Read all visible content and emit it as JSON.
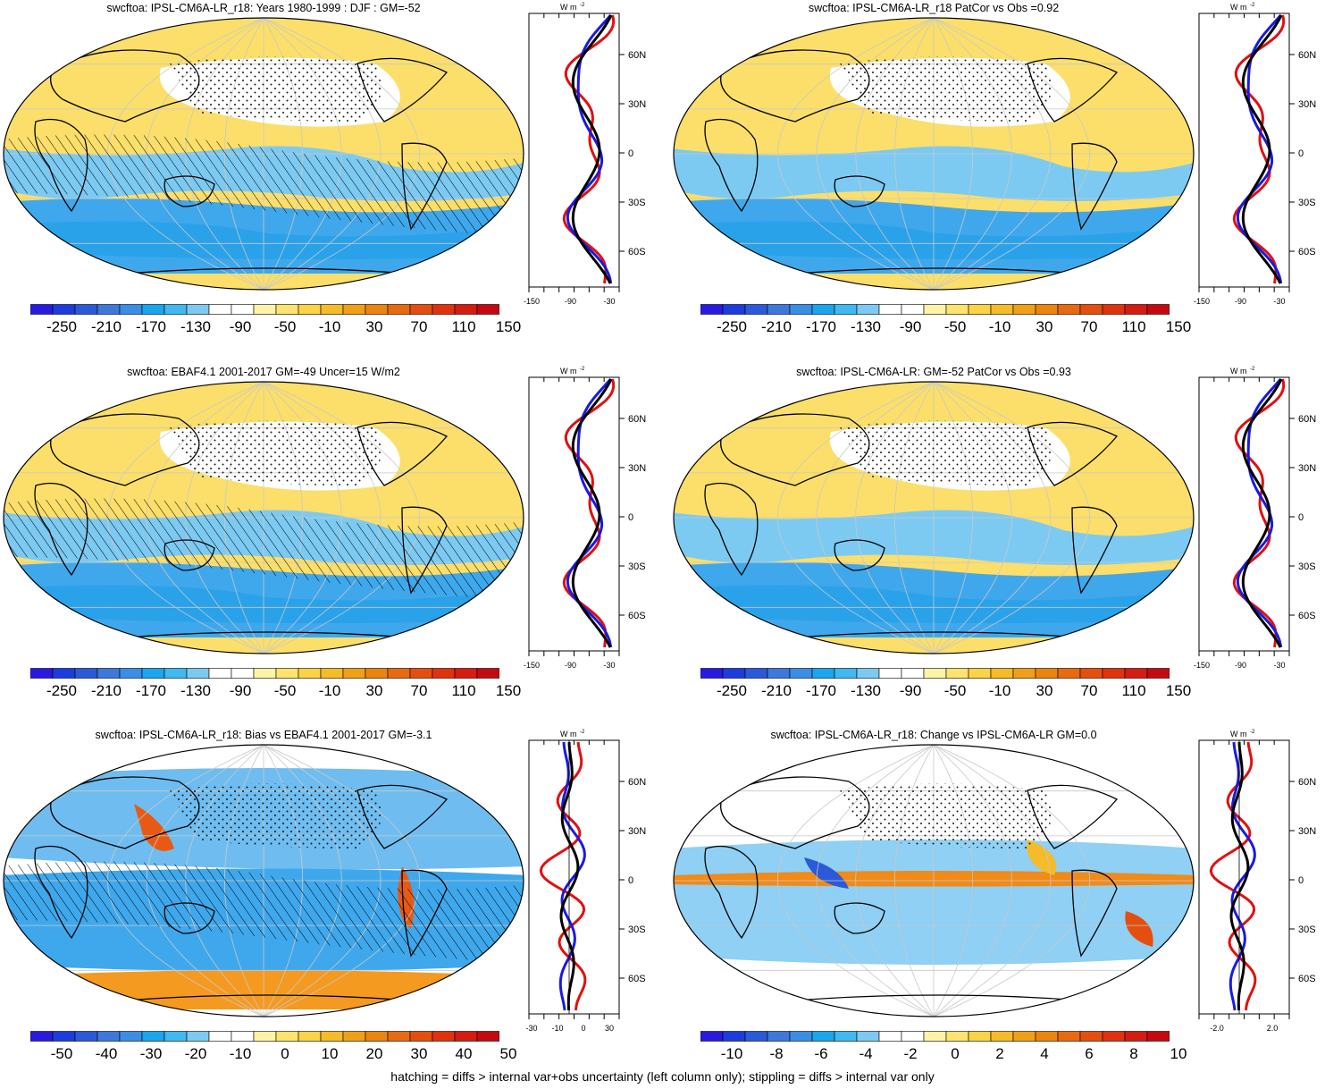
{
  "panels": [
    {
      "id": "p1",
      "title": "swcftoa: IPSL-CM6A-LR_r18: Years 1980-1999 : DJF : GM=-52",
      "colorbar": {
        "labels": [
          "-250",
          "-210",
          "-170",
          "-130",
          "-90",
          "-50",
          "-10",
          "30",
          "70",
          "110",
          "150"
        ],
        "colors": [
          "#2a1ae0",
          "#1c3cdc",
          "#2a5ad8",
          "#3d78dd",
          "#3a8ee6",
          "#1aa5ee",
          "#40b8f0",
          "#7ccaf2",
          "#ffffff",
          "#ffffff",
          "#fff3a8",
          "#ffe36e",
          "#fcd247",
          "#f6bb28",
          "#f0a018",
          "#ec8410",
          "#e86a0e",
          "#e44f0d",
          "#e0330d",
          "#d41c10",
          "#c40a10"
        ]
      },
      "profile": {
        "unit": "W m",
        "unit_exp": "-2",
        "lat_labels": [
          "60N",
          "30N",
          "0",
          "30S",
          "60S"
        ],
        "x_labels": [
          "-150",
          "-90",
          "-30"
        ]
      }
    },
    {
      "id": "p2",
      "title": "swcftoa: IPSL-CM6A-LR_r18 PatCor vs Obs =0.92",
      "colorbar": {
        "labels": [
          "-250",
          "-210",
          "-170",
          "-130",
          "-90",
          "-50",
          "-10",
          "30",
          "70",
          "110",
          "150"
        ],
        "colors": [
          "#2a1ae0",
          "#1c3cdc",
          "#2a5ad8",
          "#3d78dd",
          "#3a8ee6",
          "#1aa5ee",
          "#40b8f0",
          "#7ccaf2",
          "#ffffff",
          "#ffffff",
          "#fff3a8",
          "#ffe36e",
          "#fcd247",
          "#f6bb28",
          "#f0a018",
          "#ec8410",
          "#e86a0e",
          "#e44f0d",
          "#e0330d",
          "#d41c10",
          "#c40a10"
        ]
      },
      "profile": {
        "unit": "W m",
        "unit_exp": "-2",
        "lat_labels": [
          "60N",
          "30N",
          "0",
          "30S",
          "60S"
        ],
        "x_labels": [
          "-150",
          "-90",
          "-30"
        ]
      }
    },
    {
      "id": "p3",
      "title": "swcftoa: EBAF4.1 2001-2017 GM=-49 Uncer=15 W/m2",
      "colorbar": {
        "labels": [
          "-250",
          "-210",
          "-170",
          "-130",
          "-90",
          "-50",
          "-10",
          "30",
          "70",
          "110",
          "150"
        ],
        "colors": [
          "#2a1ae0",
          "#1c3cdc",
          "#2a5ad8",
          "#3d78dd",
          "#3a8ee6",
          "#1aa5ee",
          "#40b8f0",
          "#7ccaf2",
          "#ffffff",
          "#ffffff",
          "#fff3a8",
          "#ffe36e",
          "#fcd247",
          "#f6bb28",
          "#f0a018",
          "#ec8410",
          "#e86a0e",
          "#e44f0d",
          "#e0330d",
          "#d41c10",
          "#c40a10"
        ]
      },
      "profile": {
        "unit": "W m",
        "unit_exp": "-2",
        "lat_labels": [
          "60N",
          "30N",
          "0",
          "30S",
          "60S"
        ],
        "x_labels": [
          "-150",
          "-90",
          "-30"
        ]
      }
    },
    {
      "id": "p4",
      "title": "swcftoa: IPSL-CM6A-LR: GM=-52 PatCor vs Obs =0.93",
      "colorbar": {
        "labels": [
          "-250",
          "-210",
          "-170",
          "-130",
          "-90",
          "-50",
          "-10",
          "30",
          "70",
          "110",
          "150"
        ],
        "colors": [
          "#2a1ae0",
          "#1c3cdc",
          "#2a5ad8",
          "#3d78dd",
          "#3a8ee6",
          "#1aa5ee",
          "#40b8f0",
          "#7ccaf2",
          "#ffffff",
          "#ffffff",
          "#fff3a8",
          "#ffe36e",
          "#fcd247",
          "#f6bb28",
          "#f0a018",
          "#ec8410",
          "#e86a0e",
          "#e44f0d",
          "#e0330d",
          "#d41c10",
          "#c40a10"
        ]
      },
      "profile": {
        "unit": "W m",
        "unit_exp": "-2",
        "lat_labels": [
          "60N",
          "30N",
          "0",
          "30S",
          "60S"
        ],
        "x_labels": [
          "-150",
          "-90",
          "-30"
        ]
      }
    },
    {
      "id": "p5",
      "title": "swcftoa: IPSL-CM6A-LR_r18: Bias vs EBAF4.1 2001-2017 GM=-3.1",
      "colorbar": {
        "labels": [
          "-50",
          "-40",
          "-30",
          "-20",
          "-10",
          "0",
          "10",
          "20",
          "30",
          "40",
          "50"
        ],
        "colors": [
          "#2a1ae0",
          "#1c3cdc",
          "#2a5ad8",
          "#3d78dd",
          "#3a8ee6",
          "#1aa5ee",
          "#40b8f0",
          "#7ccaf2",
          "#ffffff",
          "#ffffff",
          "#fff3a8",
          "#ffe36e",
          "#fcd247",
          "#f6bb28",
          "#f0a018",
          "#ec8410",
          "#e86a0e",
          "#e44f0d",
          "#e0330d",
          "#d41c10",
          "#c40a10"
        ]
      },
      "profile": {
        "unit": "W m",
        "unit_exp": "-2",
        "lat_labels": [
          "60N",
          "30N",
          "0",
          "30S",
          "60S"
        ],
        "x_labels": [
          "-30",
          "-10",
          "0",
          "30"
        ]
      }
    },
    {
      "id": "p6",
      "title": "swcftoa: IPSL-CM6A-LR_r18: Change vs IPSL-CM6A-LR GM=0.0",
      "colorbar": {
        "labels": [
          "-10",
          "-8",
          "-6",
          "-4",
          "-2",
          "0",
          "2",
          "4",
          "6",
          "8",
          "10"
        ],
        "colors": [
          "#2a1ae0",
          "#1c3cdc",
          "#2a5ad8",
          "#3d78dd",
          "#3a8ee6",
          "#1aa5ee",
          "#40b8f0",
          "#7ccaf2",
          "#ffffff",
          "#ffffff",
          "#fff3a8",
          "#ffe36e",
          "#fcd247",
          "#f6bb28",
          "#f0a018",
          "#ec8410",
          "#e86a0e",
          "#e44f0d",
          "#e0330d",
          "#d41c10",
          "#c40a10"
        ]
      },
      "profile": {
        "unit": "W m",
        "unit_exp": "-2",
        "lat_labels": [
          "60N",
          "30N",
          "0",
          "30S",
          "60S"
        ],
        "x_labels": [
          "-2.0",
          "2.0"
        ]
      }
    }
  ],
  "footnote": "hatching = diffs > internal var+obs uncertainty (left column only); stippling = diffs > internal var only",
  "colors": {
    "model_line": "#000000",
    "obs_line": "#e01010",
    "ref_line": "#1a1ae0",
    "land_outline": "#000000",
    "grid": "#c8c8c8",
    "fill_positive": "#fbdf6a",
    "fill_negative": "#3fa8ec"
  }
}
